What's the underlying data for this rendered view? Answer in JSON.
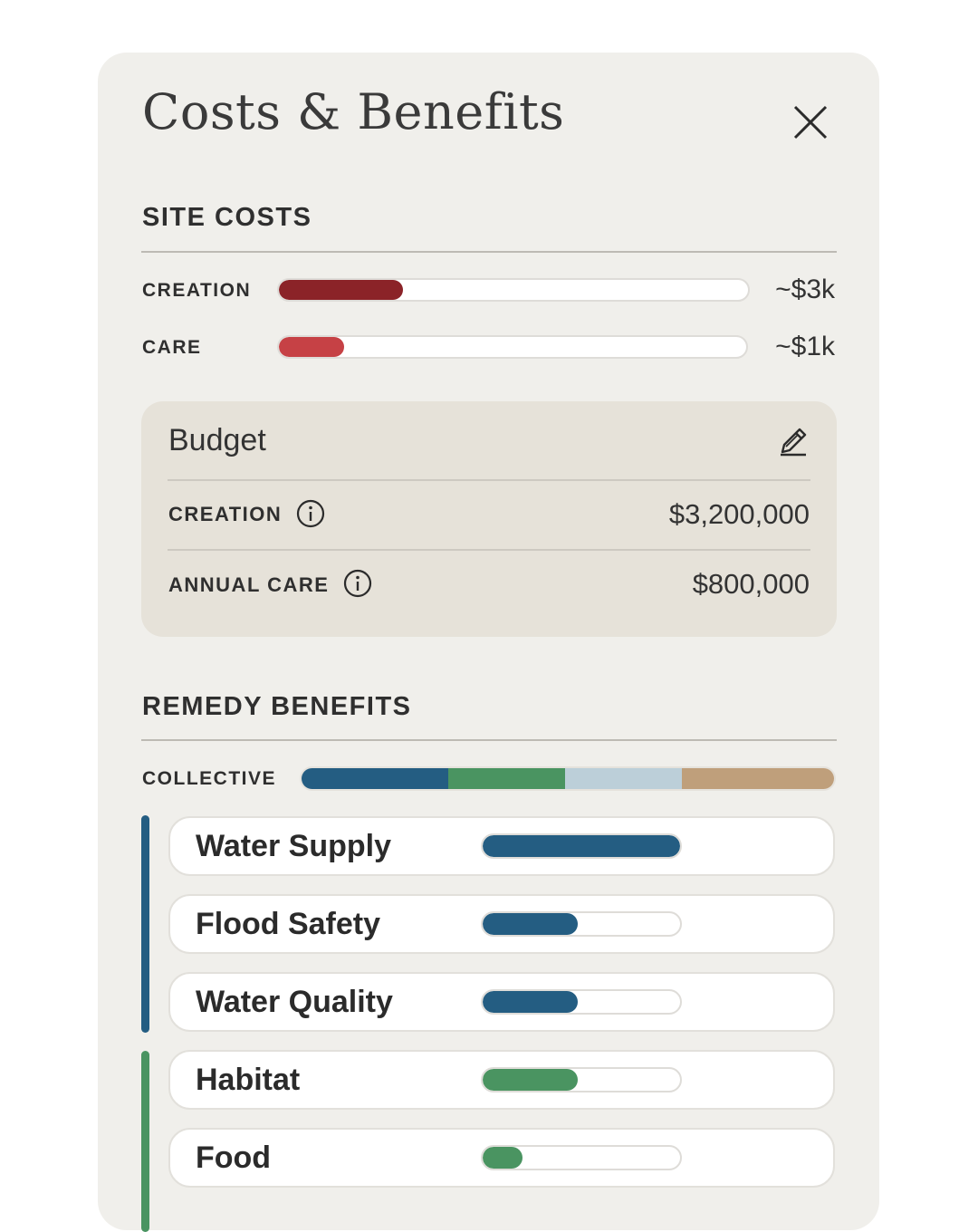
{
  "header": {
    "title": "Costs & Benefits"
  },
  "site_costs": {
    "heading": "SITE COSTS",
    "rows": [
      {
        "label": "CREATION",
        "value_text": "~$3k",
        "fraction": 0.265,
        "color": "#8b2328"
      },
      {
        "label": "CARE",
        "value_text": "~$1k",
        "fraction": 0.14,
        "color": "#c64145"
      }
    ]
  },
  "budget": {
    "title": "Budget",
    "rows": [
      {
        "label": "CREATION",
        "value": "$3,200,000"
      },
      {
        "label": "ANNUAL CARE",
        "value": "$800,000"
      }
    ]
  },
  "remedy_benefits": {
    "heading": "REMEDY BENEFITS",
    "collective": {
      "label": "COLLECTIVE",
      "segments": [
        {
          "fraction": 0.275,
          "color": "#245d82"
        },
        {
          "fraction": 0.22,
          "color": "#4a9461"
        },
        {
          "fraction": 0.22,
          "color": "#bccfd9"
        },
        {
          "fraction": 0.285,
          "color": "#bf9f7b"
        }
      ]
    },
    "groups": [
      {
        "color": "#245d82"
      },
      {
        "color": "#4a9461"
      }
    ],
    "items": [
      {
        "name": "Water Supply",
        "fraction": 1.0,
        "color": "#245d82"
      },
      {
        "name": "Flood Safety",
        "fraction": 0.48,
        "color": "#245d82"
      },
      {
        "name": "Water Quality",
        "fraction": 0.48,
        "color": "#245d82"
      },
      {
        "name": "Habitat",
        "fraction": 0.48,
        "color": "#4a9461"
      },
      {
        "name": "Food",
        "fraction": 0.2,
        "color": "#4a9461"
      }
    ]
  },
  "icons": {
    "close": "close-icon",
    "edit": "pencil-icon",
    "info": "info-icon"
  }
}
